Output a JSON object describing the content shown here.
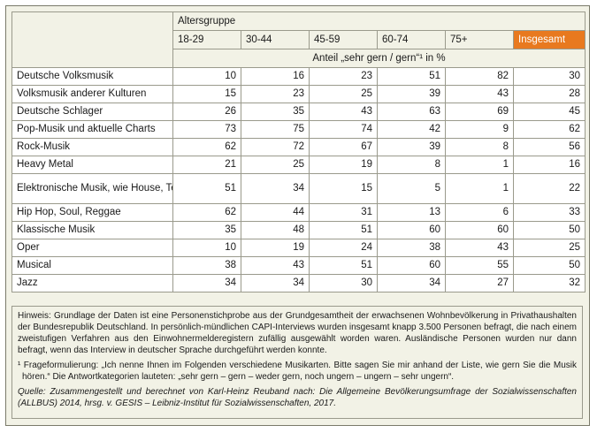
{
  "header": {
    "group_label": "Altersgruppe",
    "columns": [
      "18-29",
      "30-44",
      "45-59",
      "60-74",
      "75+",
      "Insgesamt"
    ],
    "unit_label": "Anteil „sehr gern / gern“¹ in %"
  },
  "rows": [
    {
      "label": "Deutsche Volksmusik",
      "values": [
        10,
        16,
        23,
        51,
        82,
        30
      ]
    },
    {
      "label": "Volksmusik anderer Kulturen",
      "values": [
        15,
        23,
        25,
        39,
        43,
        28
      ]
    },
    {
      "label": "Deutsche Schlager",
      "values": [
        26,
        35,
        43,
        63,
        69,
        45
      ]
    },
    {
      "label": "Pop-Musik und aktuelle Charts",
      "values": [
        73,
        75,
        74,
        42,
        9,
        62
      ]
    },
    {
      "label": "Rock-Musik",
      "values": [
        62,
        72,
        67,
        39,
        8,
        56
      ]
    },
    {
      "label": "Heavy Metal",
      "values": [
        21,
        25,
        19,
        8,
        1,
        16
      ]
    },
    {
      "label": "Elektronische Musik, wie House, Techno, Electro",
      "values": [
        51,
        34,
        15,
        5,
        1,
        22
      ]
    },
    {
      "label": "Hip Hop, Soul, Reggae",
      "values": [
        62,
        44,
        31,
        13,
        6,
        33
      ]
    },
    {
      "label": "Klassische Musik",
      "values": [
        35,
        48,
        51,
        60,
        60,
        50
      ]
    },
    {
      "label": "Oper",
      "values": [
        10,
        19,
        24,
        38,
        43,
        25
      ]
    },
    {
      "label": "Musical",
      "values": [
        38,
        43,
        51,
        60,
        55,
        50
      ]
    },
    {
      "label": "Jazz",
      "values": [
        34,
        34,
        30,
        34,
        27,
        32
      ]
    }
  ],
  "notes": {
    "hint": "Hinweis: Grundlage der Daten ist eine Personenstichprobe aus der Grundgesamtheit der erwachsenen Wohnbevölkerung in Privathaushalten der Bundesrepublik Deutschland. In persönlich-mündlichen CAPI-Interviews wurden insgesamt knapp 3.500 Personen befragt, die nach einem zweistufigen Verfahren aus den Einwohnermelderegistern zufällig ausgewählt worden waren. Ausländische Personen wurden nur dann befragt, wenn das Interview in deutscher Sprache durchgeführt werden konnte.",
    "footnote": "¹ Frageformulierung: „Ich nenne Ihnen im Folgenden verschiedene Musikarten. Bitte sagen Sie mir anhand der Liste, wie gern Sie die Musik hören.“ Die Antwortkategorien lauteten: „sehr gern – gern – weder gern, noch ungern – ungern – sehr ungern“.",
    "source": "Quelle: Zusammengestellt und berechnet von Karl-Heinz Reuband nach: Die Allgemeine Bevölkerungsumfrage der Sozialwissenschaften (ALLBUS) 2014, hrsg. v. GESIS – Leibniz-Institut für Sozialwissenschaften, 2017."
  }
}
